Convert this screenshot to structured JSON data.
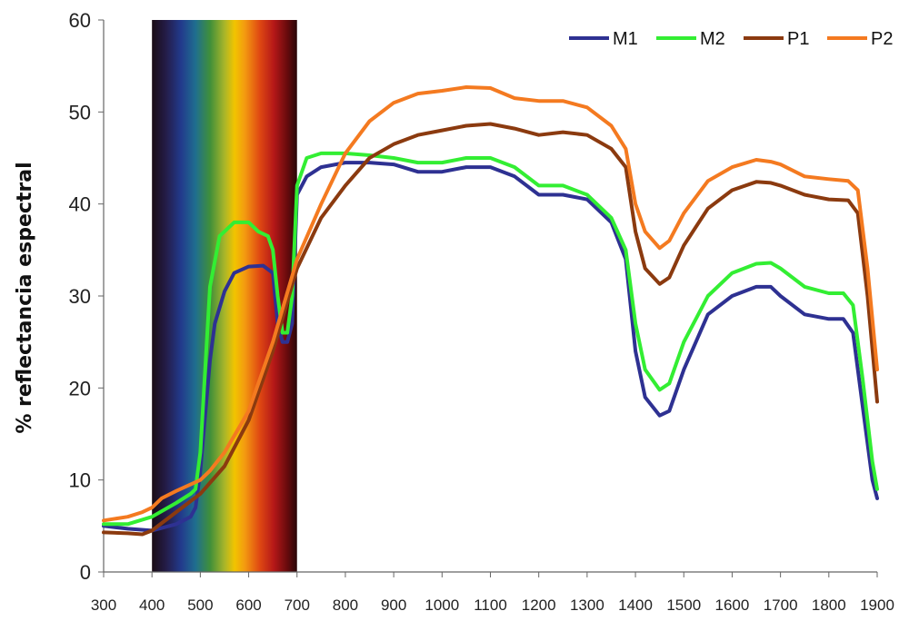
{
  "chart_data": {
    "type": "line",
    "ylabel": "% reflectancia espectral",
    "xlabel": "",
    "xlim": [
      300,
      1900
    ],
    "ylim": [
      0,
      60
    ],
    "x_ticks": [
      "300",
      "400",
      "500",
      "600",
      "700",
      "800",
      "900",
      "1000",
      "1100",
      "1200",
      "1300",
      "1400",
      "1500",
      "1600",
      "1700",
      "1800",
      "1900"
    ],
    "y_ticks": [
      "0",
      "10",
      "20",
      "30",
      "40",
      "50",
      "60"
    ],
    "visible_spectrum_band": [
      400,
      700
    ],
    "legend_position": "top-right",
    "series": [
      {
        "name": "M1",
        "color": "#2e3192",
        "points": [
          [
            300,
            5
          ],
          [
            350,
            4.7
          ],
          [
            400,
            4.5
          ],
          [
            450,
            5.2
          ],
          [
            480,
            6
          ],
          [
            490,
            7
          ],
          [
            500,
            11
          ],
          [
            510,
            17
          ],
          [
            520,
            23
          ],
          [
            530,
            27
          ],
          [
            550,
            30.5
          ],
          [
            570,
            32.5
          ],
          [
            600,
            33.2
          ],
          [
            630,
            33.3
          ],
          [
            650,
            32.5
          ],
          [
            660,
            27
          ],
          [
            670,
            25
          ],
          [
            680,
            25
          ],
          [
            690,
            27
          ],
          [
            700,
            41
          ],
          [
            720,
            43
          ],
          [
            750,
            44
          ],
          [
            800,
            44.5
          ],
          [
            850,
            44.5
          ],
          [
            900,
            44.3
          ],
          [
            950,
            43.5
          ],
          [
            1000,
            43.5
          ],
          [
            1050,
            44
          ],
          [
            1100,
            44
          ],
          [
            1150,
            43
          ],
          [
            1200,
            41
          ],
          [
            1250,
            41
          ],
          [
            1300,
            40.5
          ],
          [
            1350,
            38
          ],
          [
            1380,
            34
          ],
          [
            1400,
            24
          ],
          [
            1420,
            19
          ],
          [
            1450,
            17
          ],
          [
            1470,
            17.5
          ],
          [
            1500,
            22
          ],
          [
            1550,
            28
          ],
          [
            1600,
            30
          ],
          [
            1650,
            31
          ],
          [
            1680,
            31
          ],
          [
            1700,
            30
          ],
          [
            1750,
            28
          ],
          [
            1800,
            27.5
          ],
          [
            1830,
            27.5
          ],
          [
            1850,
            26
          ],
          [
            1870,
            18
          ],
          [
            1890,
            10
          ],
          [
            1900,
            8
          ]
        ]
      },
      {
        "name": "M2",
        "color": "#33ee33",
        "points": [
          [
            300,
            5.2
          ],
          [
            350,
            5.2
          ],
          [
            400,
            6
          ],
          [
            450,
            7.5
          ],
          [
            480,
            8.5
          ],
          [
            490,
            9
          ],
          [
            500,
            13
          ],
          [
            510,
            22
          ],
          [
            520,
            31
          ],
          [
            540,
            36.5
          ],
          [
            570,
            38
          ],
          [
            600,
            38
          ],
          [
            620,
            37
          ],
          [
            640,
            36.5
          ],
          [
            650,
            35
          ],
          [
            660,
            30
          ],
          [
            670,
            26
          ],
          [
            680,
            26
          ],
          [
            690,
            30
          ],
          [
            700,
            42
          ],
          [
            720,
            45
          ],
          [
            750,
            45.5
          ],
          [
            800,
            45.5
          ],
          [
            850,
            45.3
          ],
          [
            900,
            45
          ],
          [
            950,
            44.5
          ],
          [
            1000,
            44.5
          ],
          [
            1050,
            45
          ],
          [
            1100,
            45
          ],
          [
            1150,
            44
          ],
          [
            1200,
            42
          ],
          [
            1250,
            42
          ],
          [
            1300,
            41
          ],
          [
            1350,
            38.5
          ],
          [
            1380,
            35
          ],
          [
            1400,
            27
          ],
          [
            1420,
            22
          ],
          [
            1450,
            19.8
          ],
          [
            1470,
            20.5
          ],
          [
            1500,
            25
          ],
          [
            1550,
            30
          ],
          [
            1600,
            32.5
          ],
          [
            1650,
            33.5
          ],
          [
            1680,
            33.6
          ],
          [
            1700,
            33
          ],
          [
            1750,
            31
          ],
          [
            1800,
            30.3
          ],
          [
            1830,
            30.3
          ],
          [
            1850,
            29
          ],
          [
            1870,
            21
          ],
          [
            1890,
            12
          ],
          [
            1900,
            9
          ]
        ]
      },
      {
        "name": "P1",
        "color": "#8b3a0f",
        "points": [
          [
            300,
            4.3
          ],
          [
            350,
            4.2
          ],
          [
            380,
            4.1
          ],
          [
            400,
            4.5
          ],
          [
            450,
            6.5
          ],
          [
            500,
            8.5
          ],
          [
            550,
            11.5
          ],
          [
            600,
            16.5
          ],
          [
            650,
            24
          ],
          [
            700,
            33
          ],
          [
            750,
            38.5
          ],
          [
            800,
            42
          ],
          [
            850,
            45
          ],
          [
            900,
            46.5
          ],
          [
            950,
            47.5
          ],
          [
            1000,
            48
          ],
          [
            1050,
            48.5
          ],
          [
            1100,
            48.7
          ],
          [
            1150,
            48.2
          ],
          [
            1200,
            47.5
          ],
          [
            1250,
            47.8
          ],
          [
            1300,
            47.5
          ],
          [
            1350,
            46
          ],
          [
            1380,
            44
          ],
          [
            1400,
            37
          ],
          [
            1420,
            33
          ],
          [
            1450,
            31.3
          ],
          [
            1470,
            32
          ],
          [
            1500,
            35.5
          ],
          [
            1550,
            39.5
          ],
          [
            1600,
            41.5
          ],
          [
            1650,
            42.4
          ],
          [
            1680,
            42.3
          ],
          [
            1700,
            42
          ],
          [
            1750,
            41
          ],
          [
            1800,
            40.5
          ],
          [
            1840,
            40.4
          ],
          [
            1860,
            39
          ],
          [
            1880,
            30
          ],
          [
            1900,
            18.5
          ]
        ]
      },
      {
        "name": "P2",
        "color": "#f47a20",
        "points": [
          [
            300,
            5.6
          ],
          [
            350,
            6
          ],
          [
            380,
            6.5
          ],
          [
            400,
            7
          ],
          [
            420,
            8
          ],
          [
            450,
            8.8
          ],
          [
            500,
            10
          ],
          [
            520,
            11
          ],
          [
            550,
            13
          ],
          [
            600,
            17.5
          ],
          [
            650,
            25
          ],
          [
            700,
            34
          ],
          [
            750,
            40
          ],
          [
            800,
            45.5
          ],
          [
            850,
            49
          ],
          [
            900,
            51
          ],
          [
            950,
            52
          ],
          [
            1000,
            52.3
          ],
          [
            1050,
            52.7
          ],
          [
            1100,
            52.6
          ],
          [
            1150,
            51.5
          ],
          [
            1200,
            51.2
          ],
          [
            1250,
            51.2
          ],
          [
            1300,
            50.5
          ],
          [
            1350,
            48.5
          ],
          [
            1380,
            46
          ],
          [
            1400,
            40
          ],
          [
            1420,
            37
          ],
          [
            1450,
            35.2
          ],
          [
            1470,
            36
          ],
          [
            1500,
            39
          ],
          [
            1550,
            42.5
          ],
          [
            1600,
            44
          ],
          [
            1650,
            44.8
          ],
          [
            1680,
            44.6
          ],
          [
            1700,
            44.3
          ],
          [
            1750,
            43
          ],
          [
            1800,
            42.7
          ],
          [
            1840,
            42.5
          ],
          [
            1860,
            41.5
          ],
          [
            1880,
            33
          ],
          [
            1900,
            22
          ]
        ]
      }
    ]
  }
}
